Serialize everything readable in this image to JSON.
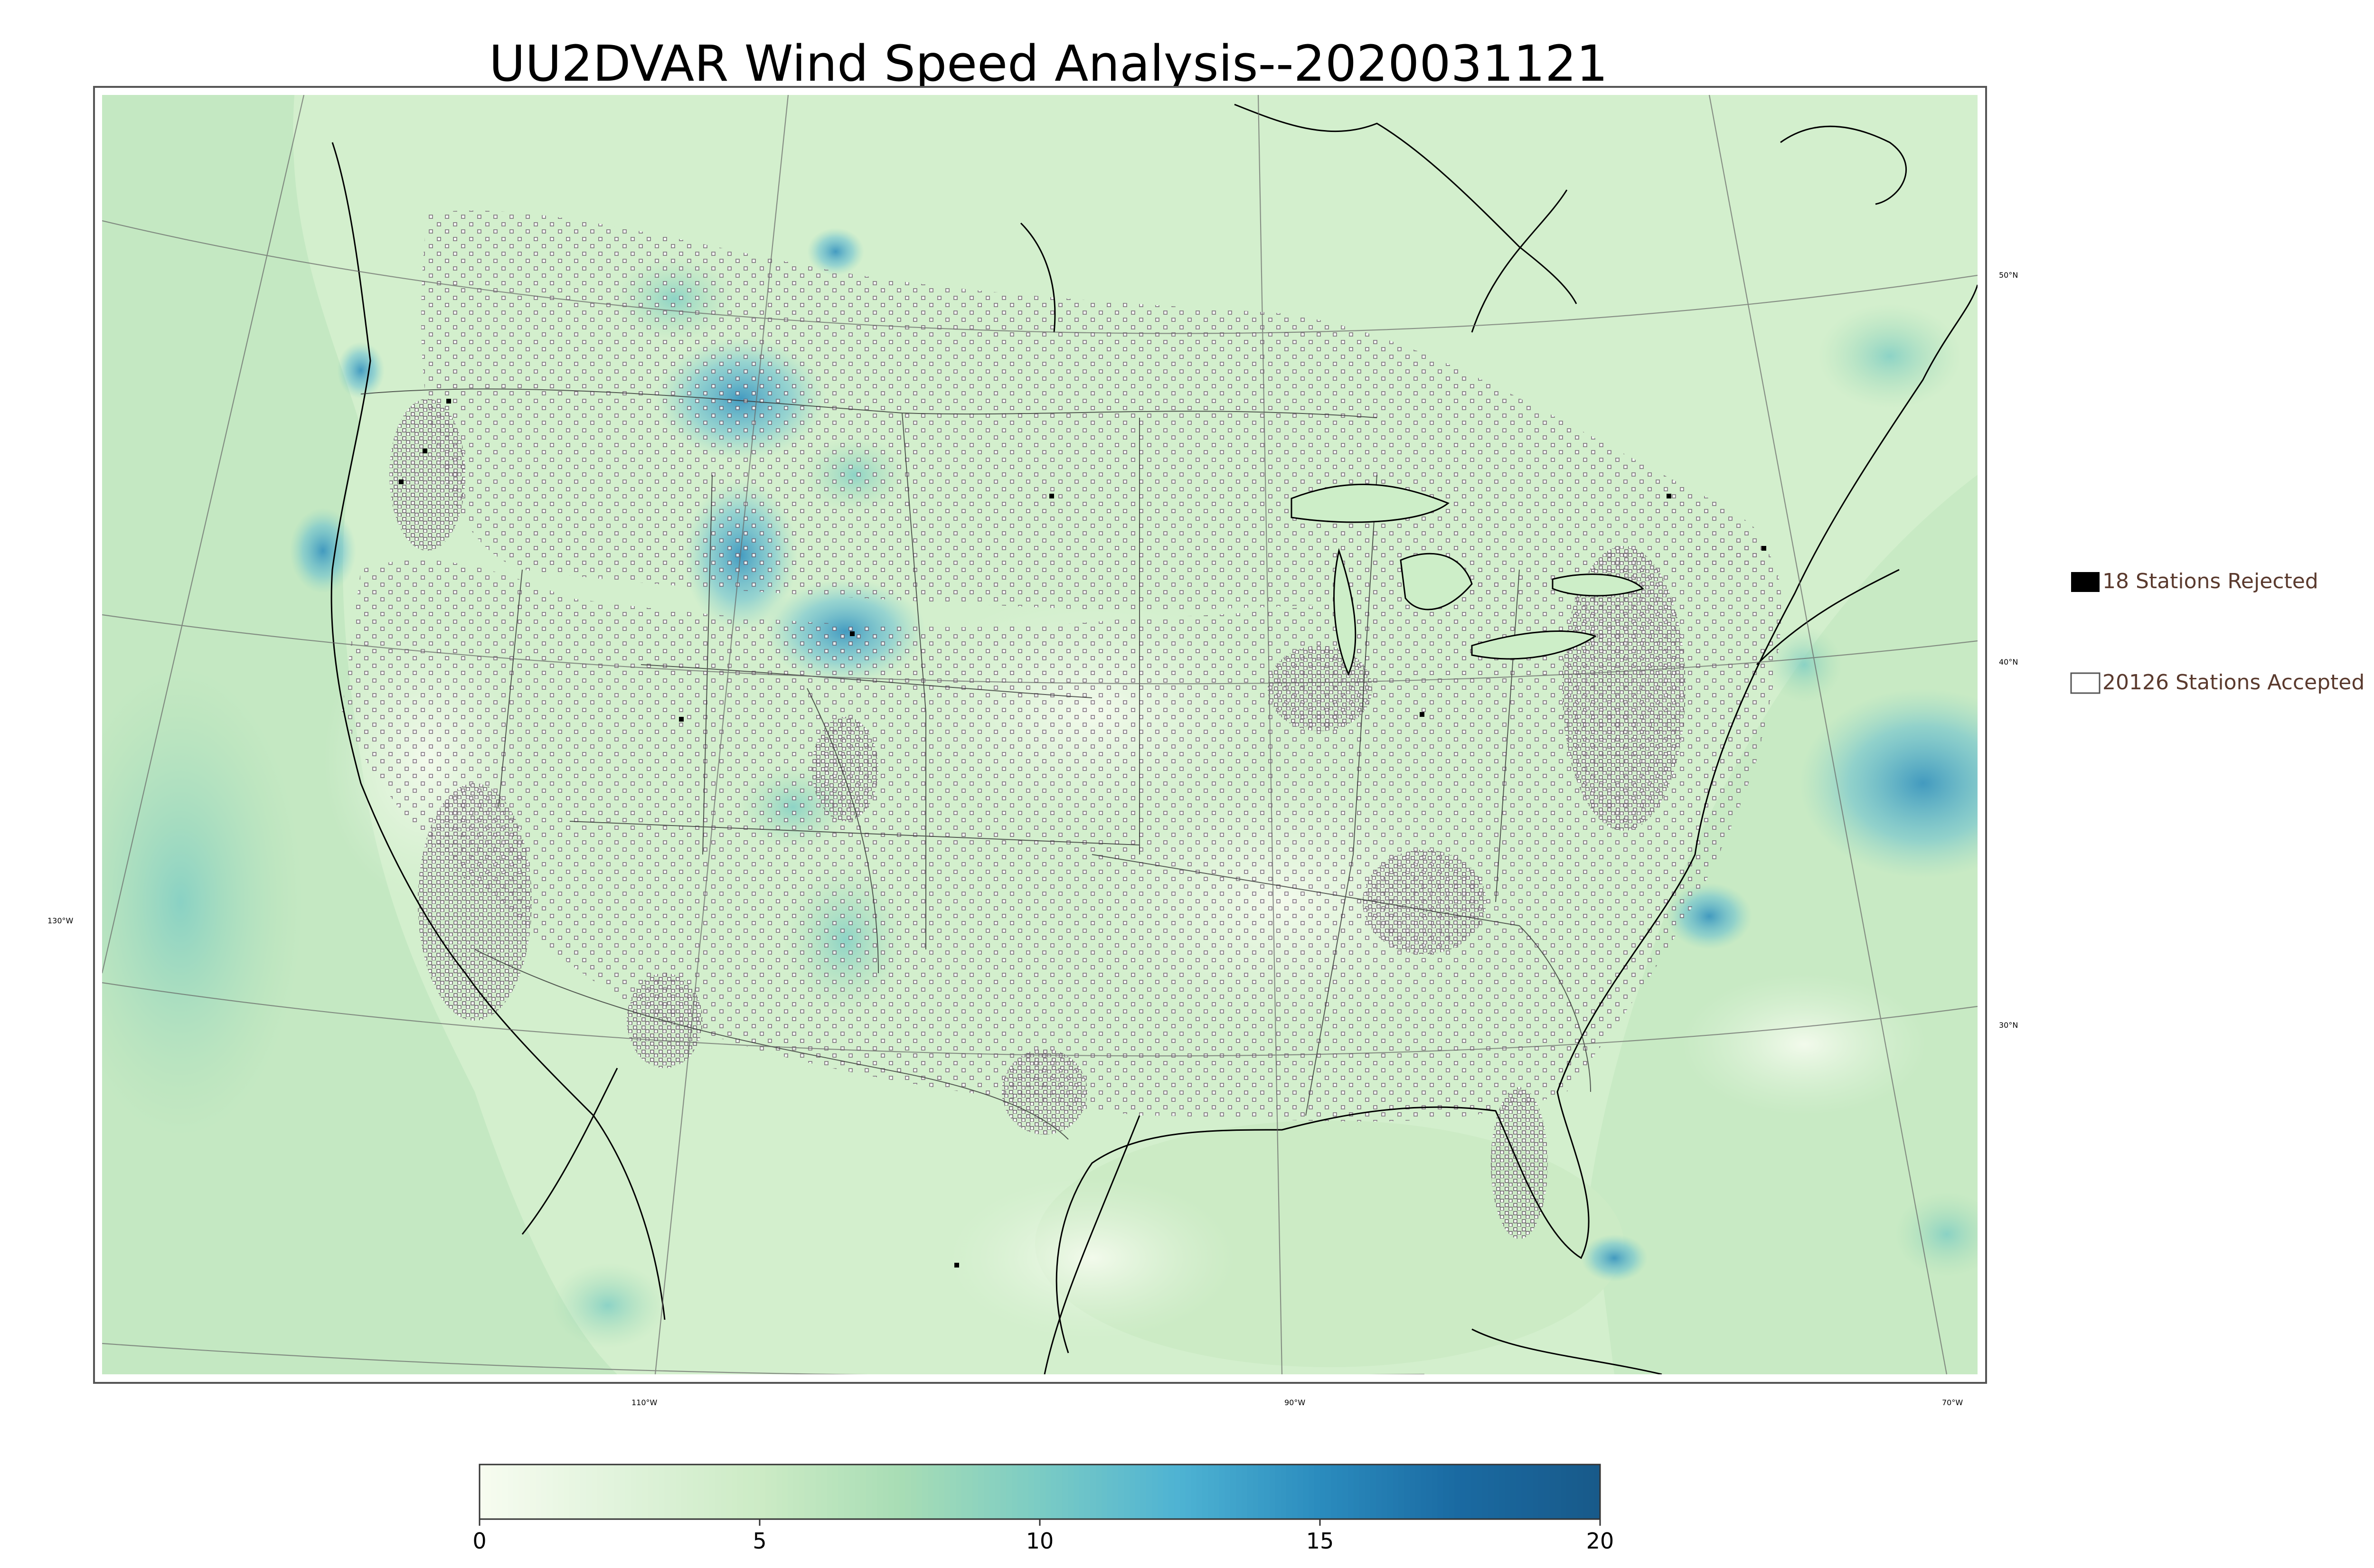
{
  "title": "UU2DVAR Wind Speed Analysis--2020031121",
  "legend": {
    "rejected_label": "18 Stations Rejected",
    "accepted_label": "20126 Stations Accepted",
    "rejected_color": "#000000",
    "accepted_color": "#ffffff"
  },
  "graticule": {
    "lat_labels": [
      "50°N",
      "40°N",
      "30°N"
    ],
    "lon_labels": [
      "130°W",
      "110°W",
      "90°W",
      "70°W"
    ]
  },
  "colorbar": {
    "min": 0,
    "max": 20,
    "ticks": [
      "0",
      "5",
      "10",
      "15",
      "20"
    ],
    "colormap": "GnBu",
    "stops": [
      "#f7fcf0",
      "#e0f3db",
      "#ccebc5",
      "#a8ddb5",
      "#7bccc4",
      "#4eb3d3",
      "#2b8cbe",
      "#1a6aa2",
      "#185a8a"
    ]
  },
  "colors": {
    "land_light": "#e6f5df",
    "ocean": "#c9ebc6",
    "coast": "#000000",
    "border": "#333333",
    "grid": "#555555",
    "accent_blue": "#2b8cbe"
  },
  "stations": {
    "rejected": 18,
    "accepted": 20126
  }
}
